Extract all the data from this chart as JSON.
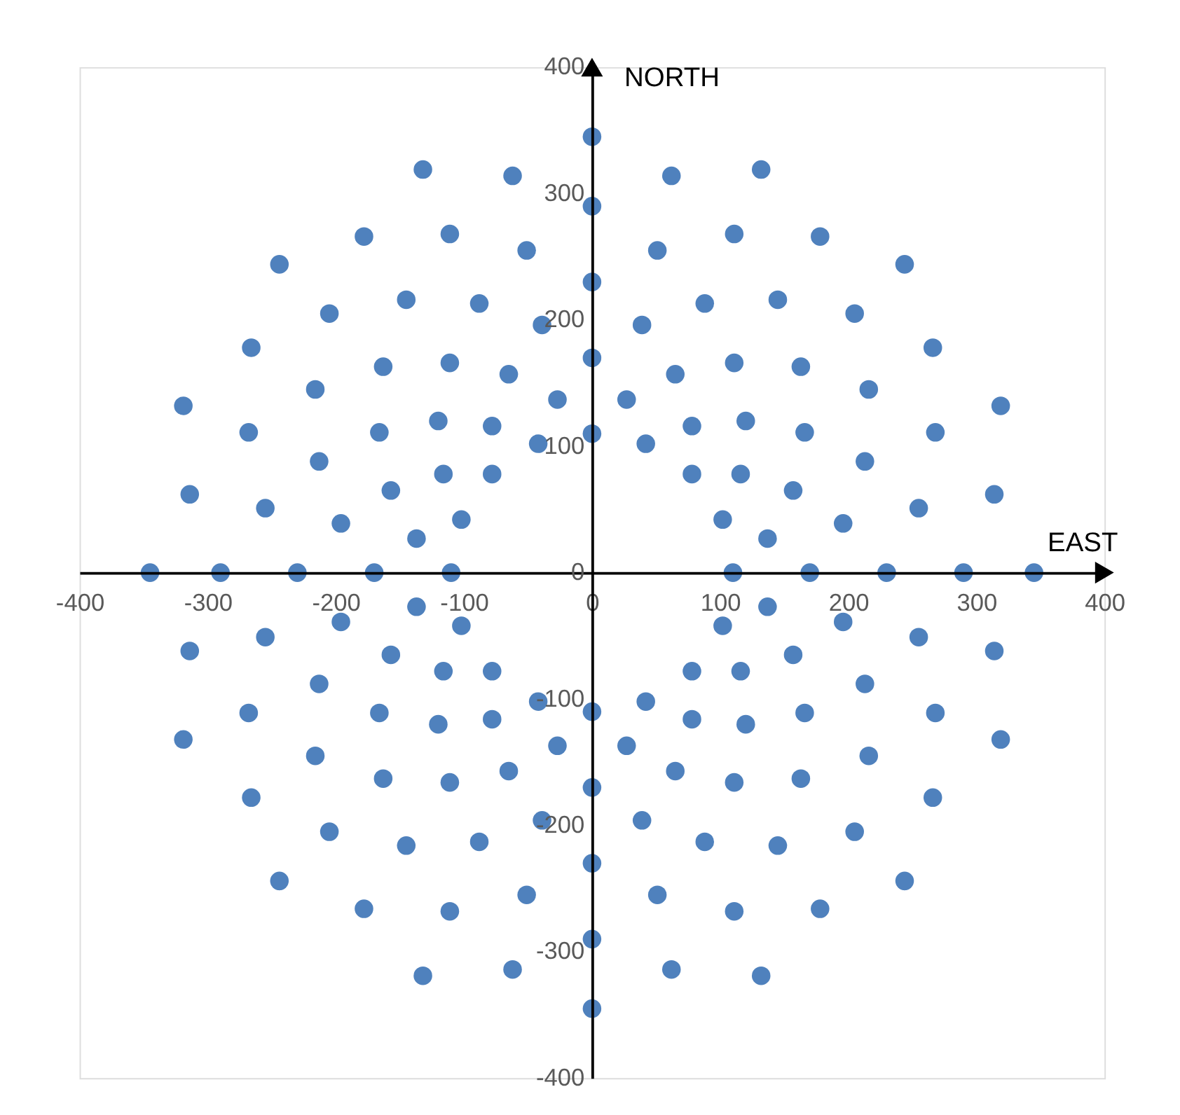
{
  "chart_data": {
    "type": "scatter",
    "xlabel": "EAST",
    "ylabel": "NORTH",
    "xlim": [
      -400,
      400
    ],
    "ylim": [
      -400,
      400
    ],
    "xticks": [
      -400,
      -300,
      -200,
      -100,
      0,
      100,
      200,
      300,
      400
    ],
    "yticks": [
      -400,
      -300,
      -200,
      -100,
      0,
      100,
      200,
      300,
      400
    ],
    "grid": false,
    "marker": "circle",
    "series": [
      {
        "color": "#4f81bd",
        "x": [
          110,
          102,
          78,
          42,
          0,
          -42,
          -78,
          -102,
          -110,
          -102,
          -78,
          -42,
          0,
          42,
          78,
          102,
          137,
          116,
          78,
          27,
          -27,
          -78,
          -116,
          -137,
          -137,
          -116,
          -78,
          -27,
          27,
          78,
          116,
          137,
          170,
          157,
          120,
          65,
          0,
          -65,
          -120,
          -157,
          -170,
          -157,
          -120,
          -65,
          0,
          65,
          120,
          157,
          196,
          166,
          111,
          39,
          -39,
          -111,
          -166,
          -196,
          -196,
          -166,
          -111,
          -39,
          39,
          111,
          166,
          196,
          230,
          213,
          163,
          88,
          0,
          -88,
          -163,
          -213,
          -230,
          -213,
          -163,
          -88,
          0,
          88,
          163,
          213,
          255,
          216,
          145,
          51,
          -51,
          -145,
          -216,
          -255,
          -255,
          -216,
          -145,
          -51,
          51,
          145,
          216,
          255,
          290,
          268,
          205,
          111,
          0,
          -111,
          -205,
          -268,
          -290,
          -268,
          -205,
          -111,
          0,
          111,
          205,
          268,
          314,
          266,
          178,
          62,
          -62,
          -178,
          -266,
          -314,
          -314,
          -266,
          -178,
          -62,
          62,
          178,
          266,
          314,
          345,
          319,
          244,
          132,
          0,
          -132,
          -244,
          -319,
          -345,
          -319,
          -244,
          -132,
          0,
          132,
          244,
          319
        ],
        "values": [
          0,
          42,
          78,
          102,
          110,
          102,
          78,
          42,
          0,
          -42,
          -78,
          -102,
          -110,
          -102,
          -78,
          -42,
          27,
          78,
          116,
          137,
          137,
          116,
          78,
          27,
          -27,
          -78,
          -116,
          -137,
          -137,
          -116,
          -78,
          -27,
          0,
          65,
          120,
          157,
          170,
          157,
          120,
          65,
          0,
          -65,
          -120,
          -157,
          -170,
          -157,
          -120,
          -65,
          39,
          111,
          166,
          196,
          196,
          166,
          111,
          39,
          -39,
          -111,
          -166,
          -196,
          -196,
          -166,
          -111,
          -39,
          0,
          88,
          163,
          213,
          230,
          213,
          163,
          88,
          0,
          -88,
          -163,
          -213,
          -230,
          -213,
          -163,
          -88,
          51,
          145,
          216,
          255,
          255,
          216,
          145,
          51,
          -51,
          -145,
          -216,
          -255,
          -255,
          -216,
          -145,
          -51,
          0,
          111,
          205,
          268,
          290,
          268,
          205,
          111,
          0,
          -111,
          -205,
          -268,
          -290,
          -268,
          -205,
          -111,
          62,
          178,
          266,
          314,
          314,
          266,
          178,
          62,
          -62,
          -178,
          -266,
          -314,
          -314,
          -266,
          -178,
          -62,
          0,
          132,
          244,
          319,
          345,
          319,
          244,
          132,
          0,
          -132,
          -244,
          -319,
          -345,
          -319,
          -244,
          -132
        ]
      }
    ]
  }
}
